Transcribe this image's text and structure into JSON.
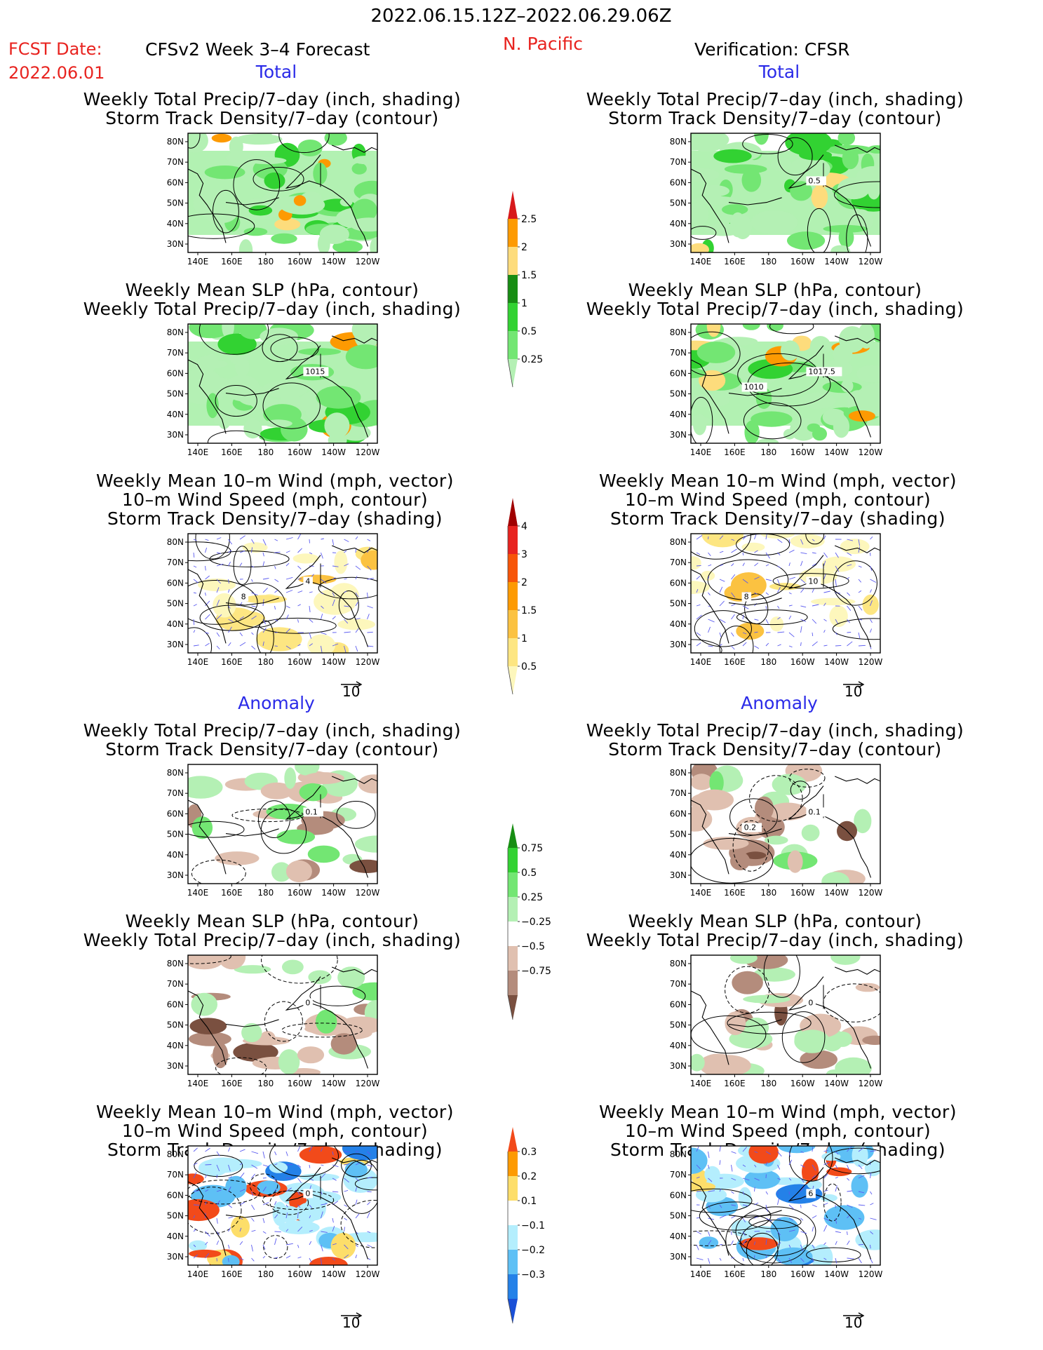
{
  "header": {
    "period": "2022.06.15.12Z–2022.06.29.06Z",
    "fcst_label": "FCST Date:",
    "fcst_date": "2022.06.01",
    "model": "CFSv2 Week 3–4 Forecast",
    "region": "N. Pacific",
    "verification": "Verification: CFSR"
  },
  "sections": {
    "left_total": "Total",
    "right_total": "Total",
    "left_anomaly": "Anomaly",
    "right_anomaly": "Anomaly"
  },
  "titles": {
    "precip_storm": [
      "Weekly Total Precip/7–day (inch, shading)",
      "Storm Track Density/7–day (contour)"
    ],
    "slp_precip": [
      "Weekly Mean SLP (hPa, contour)",
      "Weekly Total Precip/7–day (inch, shading)"
    ],
    "wind": [
      "Weekly Mean 10–m Wind (mph, vector)",
      "10–m Wind Speed (mph, contour)",
      "Storm Track Density/7–day (shading)"
    ]
  },
  "axes": {
    "lat": [
      "80N",
      "70N",
      "60N",
      "50N",
      "40N",
      "30N"
    ],
    "lon": [
      "140E",
      "160E",
      "180",
      "160W",
      "140W",
      "120W"
    ]
  },
  "vector_scale": "10",
  "colorbars": {
    "precip_total": {
      "labels": [
        "2.5",
        "2",
        "1.5",
        "1",
        "0.5",
        "0.25"
      ],
      "colors": [
        "#d7191c",
        "#fd9a02",
        "#fddc7c",
        "#178d13",
        "#32d232",
        "#73e673",
        "#b4f0b4"
      ]
    },
    "storm_total": {
      "labels": [
        "4",
        "3",
        "2",
        "1.5",
        "1",
        "0.5"
      ],
      "colors": [
        "#a00000",
        "#e8231f",
        "#f75508",
        "#fd9a02",
        "#fbc241",
        "#fde682",
        "#fdf7bc"
      ]
    },
    "precip_anom": {
      "labels": [
        "0.75",
        "0.5",
        "0.25",
        "−0.25",
        "−0.5",
        "−0.75"
      ],
      "colors": [
        "#178d13",
        "#32d232",
        "#73e673",
        "#b4f0b4",
        "#ffffff",
        "#e0c0b0",
        "#b48c7c",
        "#7a5040"
      ]
    },
    "storm_anom": {
      "labels": [
        "0.3",
        "0.2",
        "0.1",
        "−0.1",
        "−0.2",
        "−0.3"
      ],
      "colors": [
        "#f24a1a",
        "#fd9a02",
        "#fdde6a",
        "#ffffff",
        "#b4eefd",
        "#5ec0f5",
        "#2481e8",
        "#1a50d7"
      ]
    }
  },
  "contour_labels": {
    "left_slp_total": "1015",
    "right_precip_total": "0.5",
    "right_slp_total_a": "1017.5",
    "right_slp_total_b": "1010",
    "left_wind_total_a": "4",
    "left_wind_total_b": "8",
    "right_wind_total_a": "10",
    "right_wind_total_b": "8",
    "left_precip_anom": "0.1",
    "right_precip_anom_a": "0.1",
    "right_precip_anom_b": "0.2",
    "left_slp_anom": "0",
    "right_slp_anom": "0",
    "left_wind_anom": "0",
    "right_wind_anom": "6"
  }
}
